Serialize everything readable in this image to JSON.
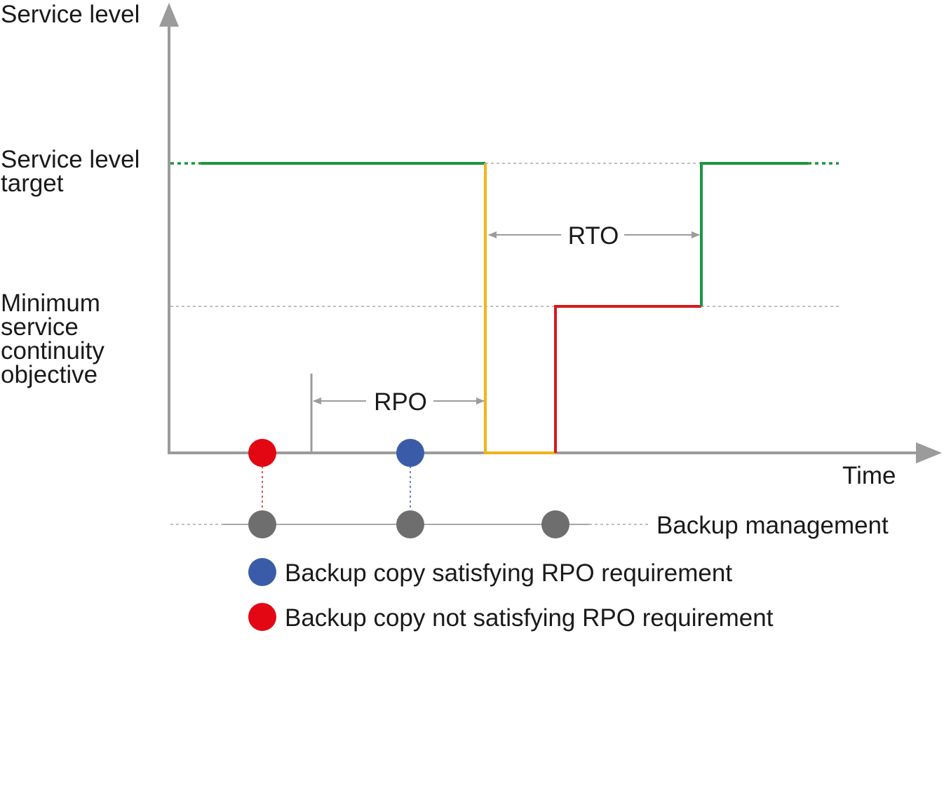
{
  "axes": {
    "y_label": "Service level",
    "x_label": "Time"
  },
  "levels": {
    "target": [
      "Service level",
      "target"
    ],
    "minimum": [
      "Minimum",
      "service",
      "continuity",
      "objective"
    ]
  },
  "annotations": {
    "rto": "RTO",
    "rpo": "RPO"
  },
  "backup_line": {
    "label": "Backup management"
  },
  "legend": [
    {
      "label": "Backup copy satisfying RPO requirement",
      "color": "#3a5ca8"
    },
    {
      "label": "Backup copy not satisfying RPO requirement",
      "color": "#e30613"
    }
  ],
  "colors": {
    "axis": "#9b9b9b",
    "normal_service": "#1a9641",
    "outage": "#f0b41c",
    "degraded": "#d7191c",
    "backup_point": "#6e6e6e",
    "reference_line": "#a8a8a8"
  }
}
